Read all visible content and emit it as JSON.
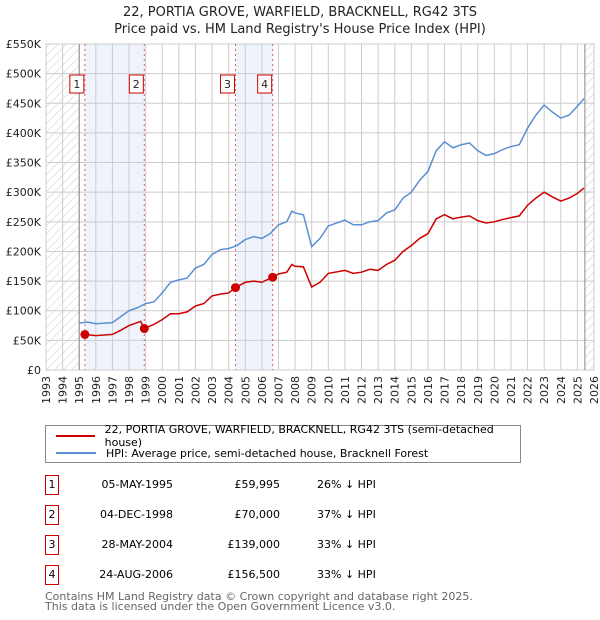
{
  "title": "22, PORTIA GROVE, WARFIELD, BRACKNELL, RG42 3TS",
  "subtitle": "Price paid vs. HM Land Registry's House Price Index (HPI)",
  "chart_data": {
    "type": "line",
    "xlim": [
      1993,
      2026
    ],
    "ylim": [
      0,
      550000
    ],
    "y_ticks": [
      {
        "v": 0,
        "label": "£0"
      },
      {
        "v": 50000,
        "label": "£50K"
      },
      {
        "v": 100000,
        "label": "£100K"
      },
      {
        "v": 150000,
        "label": "£150K"
      },
      {
        "v": 200000,
        "label": "£200K"
      },
      {
        "v": 250000,
        "label": "£250K"
      },
      {
        "v": 300000,
        "label": "£300K"
      },
      {
        "v": 350000,
        "label": "£350K"
      },
      {
        "v": 400000,
        "label": "£400K"
      },
      {
        "v": 450000,
        "label": "£450K"
      },
      {
        "v": 500000,
        "label": "£500K"
      },
      {
        "v": 550000,
        "label": "£550K"
      }
    ],
    "x_ticks": [
      "1993",
      "1994",
      "1995",
      "1996",
      "1997",
      "1998",
      "1999",
      "2000",
      "2001",
      "2002",
      "2003",
      "2004",
      "2005",
      "2006",
      "2007",
      "2008",
      "2009",
      "2010",
      "2011",
      "2012",
      "2013",
      "2014",
      "2015",
      "2016",
      "2017",
      "2018",
      "2019",
      "2020",
      "2021",
      "2022",
      "2023",
      "2024",
      "2025",
      "2026"
    ],
    "data_range": [
      1995.0,
      2025.45
    ],
    "series": [
      {
        "name": "22, PORTIA GROVE, WARFIELD, BRACKNELL, RG42 3TS (semi-detached house)",
        "color": "#cc0000",
        "x": [
          1995.35,
          1996,
          1997,
          1997.5,
          1998,
          1998.7,
          1998.92,
          1999.5,
          2000,
          2000.5,
          2001,
          2001.5,
          2002,
          2002.5,
          2003,
          2003.5,
          2004,
          2004.4,
          2005,
          2005.5,
          2006,
          2006.65,
          2007,
          2007.5,
          2007.8,
          2008,
          2008.5,
          2009,
          2009.5,
          2010,
          2011,
          2011.5,
          2012,
          2012.5,
          2013,
          2013.5,
          2014,
          2014.5,
          2015,
          2015.5,
          2016,
          2016.5,
          2017,
          2017.5,
          2018,
          2018.5,
          2019,
          2019.5,
          2020,
          2020.5,
          2021,
          2021.5,
          2022,
          2022.5,
          2023,
          2023.5,
          2024,
          2024.5,
          2025,
          2025.4
        ],
        "values": [
          60,
          58,
          60,
          67,
          75,
          82,
          70,
          77,
          85,
          95,
          95,
          98,
          108,
          112,
          125,
          128,
          130,
          139,
          148,
          150,
          148,
          156.5,
          162,
          165,
          178,
          175,
          174,
          140,
          148,
          163,
          168,
          163,
          165,
          170,
          168,
          178,
          185,
          200,
          210,
          222,
          230,
          255,
          262,
          255,
          258,
          260,
          252,
          248,
          250,
          254,
          257,
          260,
          278,
          290,
          300,
          292,
          285,
          290,
          298,
          307
        ]
      },
      {
        "name": "HPI: Average price, semi-detached house, Bracknell Forest",
        "color": "#5b8fd4",
        "x": [
          1995.0,
          1995.5,
          1996,
          1997,
          1997.5,
          1998,
          1998.5,
          1999,
          1999.5,
          2000,
          2000.5,
          2001,
          2001.5,
          2002,
          2002.5,
          2003,
          2003.5,
          2004,
          2004.5,
          2005,
          2005.5,
          2006,
          2006.5,
          2007,
          2007.5,
          2007.8,
          2008,
          2008.5,
          2009,
          2009.5,
          2010,
          2011,
          2011.5,
          2012,
          2012.5,
          2013,
          2013.5,
          2014,
          2014.5,
          2015,
          2015.5,
          2016,
          2016.5,
          2017,
          2017.5,
          2018,
          2018.5,
          2019,
          2019.5,
          2020,
          2020.5,
          2021,
          2021.5,
          2022,
          2022.5,
          2023,
          2023.5,
          2024,
          2024.5,
          2025,
          2025.4
        ],
        "values": [
          79,
          81,
          78,
          80,
          90,
          100,
          105,
          112,
          115,
          130,
          148,
          152,
          155,
          172,
          178,
          195,
          203,
          205,
          210,
          220,
          225,
          222,
          230,
          245,
          250,
          268,
          265,
          262,
          208,
          222,
          243,
          253,
          245,
          245,
          250,
          252,
          265,
          270,
          290,
          300,
          320,
          335,
          370,
          385,
          375,
          380,
          383,
          370,
          362,
          365,
          372,
          377,
          380,
          408,
          430,
          447,
          435,
          425,
          430,
          445,
          458
        ]
      }
    ],
    "sales": [
      {
        "n": "1",
        "date": "05-MAY-1995",
        "price": "£59,995",
        "hpi": "26% ↓ HPI",
        "x": 1995.34,
        "v": 59.995
      },
      {
        "n": "2",
        "date": "04-DEC-1998",
        "price": "£70,000",
        "hpi": "37% ↓ HPI",
        "x": 1998.92,
        "v": 70
      },
      {
        "n": "3",
        "date": "28-MAY-2004",
        "price": "£139,000",
        "hpi": "33% ↓ HPI",
        "x": 2004.41,
        "v": 139
      },
      {
        "n": "4",
        "date": "24-AUG-2006",
        "price": "£156,500",
        "hpi": "33% ↓ HPI",
        "x": 2006.65,
        "v": 156.5
      }
    ],
    "value_unit": "£ thousands"
  },
  "footer": [
    "Contains HM Land Registry data © Crown copyright and database right 2025.",
    "This data is licensed under the Open Government Licence v3.0."
  ]
}
